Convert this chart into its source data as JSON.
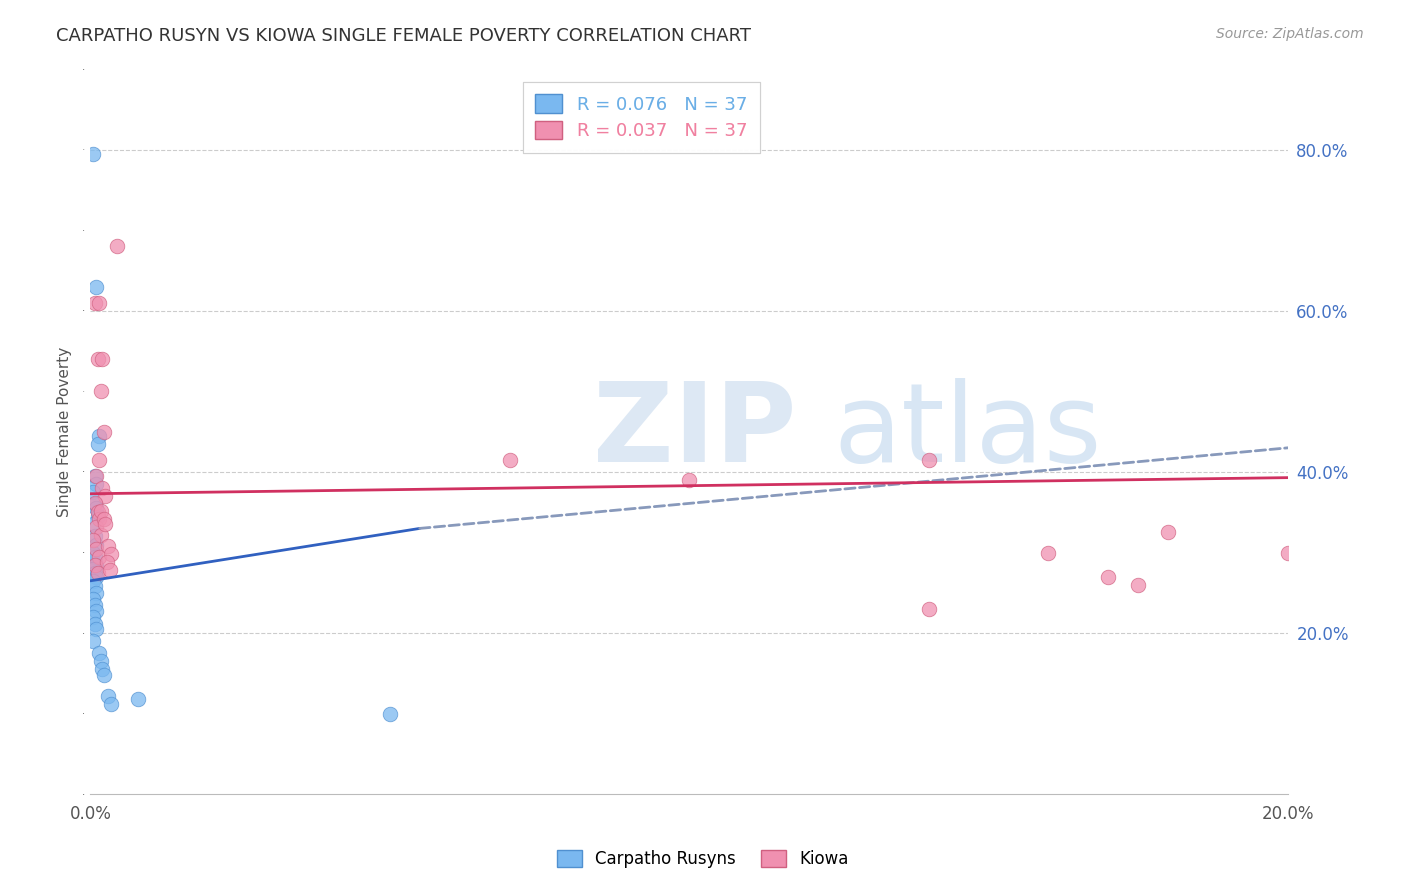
{
  "title": "CARPATHO RUSYN VS KIOWA SINGLE FEMALE POVERTY CORRELATION CHART",
  "source": "Source: ZipAtlas.com",
  "ylabel": "Single Female Poverty",
  "legend_entries": [
    {
      "label": "R = 0.076   N = 37",
      "color": "#6aaee6"
    },
    {
      "label": "R = 0.037   N = 37",
      "color": "#f080a0"
    }
  ],
  "legend_labels": [
    "Carpatho Rusyns",
    "Kiowa"
  ],
  "background_color": "#ffffff",
  "grid_color": "#cccccc",
  "blue_scatter": [
    [
      0.0005,
      0.795
    ],
    [
      0.001,
      0.63
    ],
    [
      0.0015,
      0.445
    ],
    [
      0.0012,
      0.435
    ],
    [
      0.0008,
      0.395
    ],
    [
      0.001,
      0.385
    ],
    [
      0.0005,
      0.375
    ],
    [
      0.0008,
      0.36
    ],
    [
      0.001,
      0.355
    ],
    [
      0.0012,
      0.345
    ],
    [
      0.0005,
      0.335
    ],
    [
      0.0008,
      0.32
    ],
    [
      0.001,
      0.31
    ],
    [
      0.0005,
      0.3
    ],
    [
      0.0008,
      0.295
    ],
    [
      0.001,
      0.285
    ],
    [
      0.0005,
      0.28
    ],
    [
      0.0008,
      0.275
    ],
    [
      0.001,
      0.27
    ],
    [
      0.0005,
      0.265
    ],
    [
      0.0008,
      0.258
    ],
    [
      0.001,
      0.25
    ],
    [
      0.0005,
      0.242
    ],
    [
      0.0008,
      0.235
    ],
    [
      0.001,
      0.228
    ],
    [
      0.0005,
      0.22
    ],
    [
      0.0008,
      0.212
    ],
    [
      0.001,
      0.205
    ],
    [
      0.0005,
      0.19
    ],
    [
      0.0015,
      0.175
    ],
    [
      0.0018,
      0.165
    ],
    [
      0.002,
      0.155
    ],
    [
      0.0022,
      0.148
    ],
    [
      0.003,
      0.122
    ],
    [
      0.0035,
      0.112
    ],
    [
      0.008,
      0.118
    ],
    [
      0.05,
      0.1
    ]
  ],
  "pink_scatter": [
    [
      0.0008,
      0.61
    ],
    [
      0.0015,
      0.61
    ],
    [
      0.0012,
      0.54
    ],
    [
      0.002,
      0.54
    ],
    [
      0.0018,
      0.5
    ],
    [
      0.0022,
      0.45
    ],
    [
      0.0015,
      0.415
    ],
    [
      0.001,
      0.395
    ],
    [
      0.002,
      0.38
    ],
    [
      0.0025,
      0.37
    ],
    [
      0.0008,
      0.362
    ],
    [
      0.0012,
      0.35
    ],
    [
      0.0015,
      0.342
    ],
    [
      0.001,
      0.332
    ],
    [
      0.0018,
      0.322
    ],
    [
      0.0005,
      0.315
    ],
    [
      0.001,
      0.305
    ],
    [
      0.0015,
      0.295
    ],
    [
      0.0008,
      0.285
    ],
    [
      0.0012,
      0.275
    ],
    [
      0.0018,
      0.352
    ],
    [
      0.0022,
      0.342
    ],
    [
      0.0025,
      0.335
    ],
    [
      0.003,
      0.308
    ],
    [
      0.0035,
      0.298
    ],
    [
      0.0028,
      0.288
    ],
    [
      0.0032,
      0.278
    ],
    [
      0.0045,
      0.68
    ],
    [
      0.07,
      0.415
    ],
    [
      0.1,
      0.39
    ],
    [
      0.14,
      0.415
    ],
    [
      0.14,
      0.23
    ],
    [
      0.16,
      0.3
    ],
    [
      0.17,
      0.27
    ],
    [
      0.175,
      0.26
    ],
    [
      0.18,
      0.325
    ],
    [
      0.2,
      0.3
    ]
  ],
  "blue_line_solid": {
    "x0": 0.0,
    "x1": 0.055,
    "y0": 0.265,
    "y1": 0.33
  },
  "blue_line_dashed": {
    "x0": 0.055,
    "x1": 0.2,
    "y0": 0.33,
    "y1": 0.43
  },
  "pink_line": {
    "x0": 0.0,
    "x1": 0.2,
    "y0": 0.373,
    "y1": 0.393
  },
  "xlim": [
    0.0,
    0.2
  ],
  "ylim": [
    0.0,
    0.9
  ],
  "yticks": [
    0.2,
    0.4,
    0.6,
    0.8
  ],
  "ytick_labels": [
    "20.0%",
    "40.0%",
    "60.0%",
    "80.0%"
  ],
  "xticks": [
    0.0,
    0.04,
    0.08,
    0.12,
    0.16,
    0.2
  ],
  "xtick_labels_show": {
    "0.0": "0.0%",
    "0.20": "20.0%"
  },
  "dot_size": 110,
  "blue_color": "#7ab8f0",
  "blue_edge_color": "#5090d0",
  "pink_color": "#f090b0",
  "pink_edge_color": "#d06080",
  "blue_line_color": "#3060c0",
  "pink_line_color": "#d03060",
  "dashed_line_color": "#8899bb",
  "title_fontsize": 13,
  "axis_label_fontsize": 11,
  "tick_fontsize": 12,
  "right_tick_color": "#4472c4"
}
